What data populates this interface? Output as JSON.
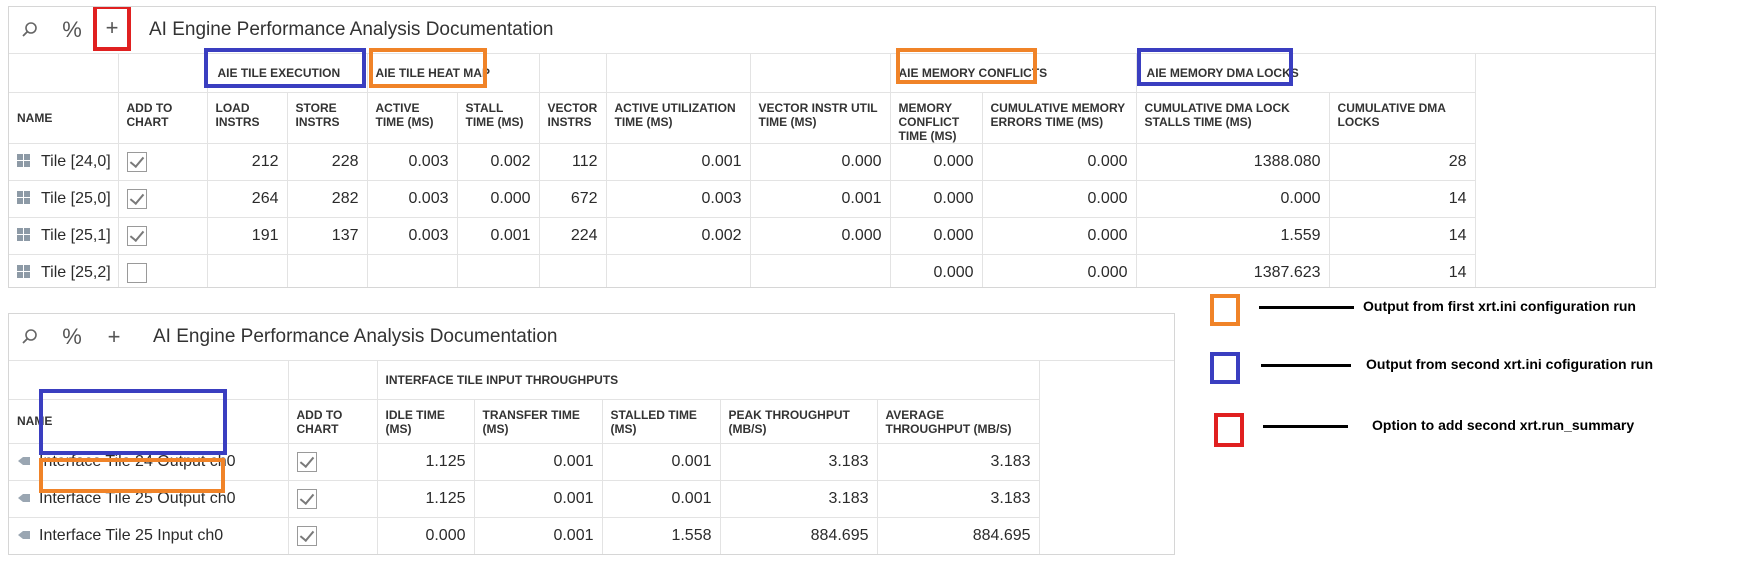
{
  "panel1": {
    "title": "AI Engine Performance Analysis Documentation",
    "groups": {
      "tile_execution": "AIE TILE EXECUTION",
      "heat_map": "AIE TILE HEAT MAP",
      "memory_conflicts": "AIE MEMORY CONFLICTS",
      "dma_locks": "AIE MEMORY DMA LOCKS"
    },
    "columns": [
      "NAME",
      "ADD TO CHART",
      "LOAD INSTRS",
      "STORE INSTRS",
      "ACTIVE TIME (MS)",
      "STALL TIME (MS)",
      "VECTOR INSTRS",
      "ACTIVE UTILIZATION TIME (MS)",
      "VECTOR INSTR UTIL TIME (MS)",
      "MEMORY CONFLICT TIME (MS)",
      "CUMULATIVE MEMORY ERRORS TIME (MS)",
      "CUMULATIVE DMA LOCK STALLS TIME (MS)",
      "CUMULATIVE DMA LOCKS"
    ],
    "rows": [
      {
        "name": "Tile [24,0]",
        "checked": true,
        "cells": [
          "212",
          "228",
          "0.003",
          "0.002",
          "112",
          "0.001",
          "0.000",
          "0.000",
          "0.000",
          "1388.080",
          "28"
        ]
      },
      {
        "name": "Tile [25,0]",
        "checked": true,
        "cells": [
          "264",
          "282",
          "0.003",
          "0.000",
          "672",
          "0.003",
          "0.001",
          "0.000",
          "0.000",
          "0.000",
          "14"
        ]
      },
      {
        "name": "Tile [25,1]",
        "checked": true,
        "cells": [
          "191",
          "137",
          "0.003",
          "0.001",
          "224",
          "0.002",
          "0.000",
          "0.000",
          "0.000",
          "1.559",
          "14"
        ]
      },
      {
        "name": "Tile [25,2]",
        "checked": false,
        "cells": [
          "",
          "",
          "",
          "",
          "",
          "",
          "",
          "0.000",
          "0.000",
          "1387.623",
          "14"
        ]
      }
    ]
  },
  "panel2": {
    "title": "AI Engine Performance Analysis Documentation",
    "group": "INTERFACE TILE INPUT THROUGHPUTS",
    "columns": [
      "NAME",
      "ADD TO CHART",
      "IDLE TIME (MS)",
      "TRANSFER TIME (MS)",
      "STALLED TIME (MS)",
      "PEAK THROUGHPUT (MB/S)",
      "AVERAGE THROUGHPUT (MB/S)"
    ],
    "rows": [
      {
        "name": "Interface Tile 24 Output ch0",
        "checked": true,
        "cells": [
          "1.125",
          "0.001",
          "0.001",
          "3.183",
          "3.183"
        ]
      },
      {
        "name": "Interface Tile 25 Output ch0",
        "checked": true,
        "cells": [
          "1.125",
          "0.001",
          "0.001",
          "3.183",
          "3.183"
        ]
      },
      {
        "name": "Interface Tile 25 Input ch0",
        "checked": true,
        "cells": [
          "0.000",
          "0.001",
          "1.558",
          "884.695",
          "884.695"
        ]
      }
    ]
  },
  "legend": [
    {
      "color": "#f08328",
      "text": "Output from first xrt.ini configuration run"
    },
    {
      "color": "#3a3ec0",
      "text": "Output from second xrt.ini cofiguration run"
    },
    {
      "color": "#e02020",
      "text": "Option to add second xrt.run_summary"
    }
  ],
  "icons": {
    "search": "search-icon",
    "percent": "percent-icon",
    "add": "plus-icon"
  },
  "toolbar": {
    "percent_label": "%",
    "add_label": "+"
  }
}
